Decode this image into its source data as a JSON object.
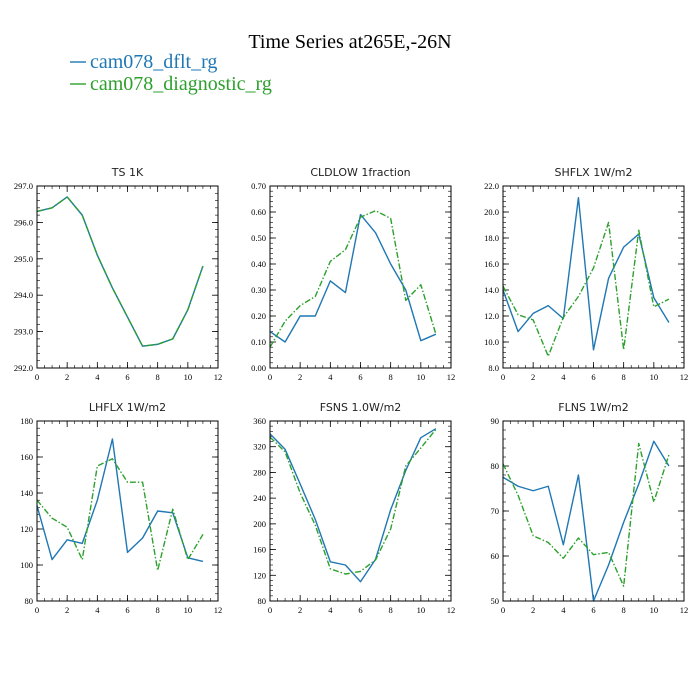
{
  "title": "Time Series at265E,-26N",
  "legend": [
    {
      "name": "cam078_dflt_rg",
      "color": "#1f77b4",
      "dash": "solid"
    },
    {
      "name": "cam078_diagnostic_rg",
      "color": "#2ca02c",
      "dash": "dashdot"
    }
  ],
  "chart_data": [
    {
      "type": "line",
      "title": "TS   1K",
      "x": [
        0,
        1,
        2,
        3,
        4,
        5,
        6,
        7,
        8,
        9,
        10,
        11
      ],
      "xlim": [
        0,
        12
      ],
      "xticks": [
        0,
        2,
        4,
        6,
        8,
        10,
        12
      ],
      "xtick_labels": [
        "0",
        "2",
        "4",
        "6",
        "8",
        "10",
        "12"
      ],
      "ylim": [
        292.0,
        297.0
      ],
      "yticks": [
        292,
        293,
        294,
        295,
        296,
        297
      ],
      "ytick_labels": [
        "292.0",
        "293.0",
        "294.0",
        "295.0",
        "296.0",
        "297.0"
      ],
      "series": [
        {
          "name": "cam078_dflt_rg",
          "values": [
            296.3,
            296.4,
            296.7,
            296.2,
            295.1,
            294.2,
            293.4,
            292.6,
            292.65,
            292.8,
            293.6,
            294.8
          ]
        },
        {
          "name": "cam078_diagnostic_rg",
          "values": [
            296.3,
            296.4,
            296.7,
            296.2,
            295.1,
            294.2,
            293.4,
            292.6,
            292.65,
            292.8,
            293.6,
            294.8
          ]
        }
      ]
    },
    {
      "type": "line",
      "title": "CLDLOW   1fraction",
      "x": [
        0,
        1,
        2,
        3,
        4,
        5,
        6,
        7,
        8,
        9,
        10,
        11
      ],
      "xlim": [
        0,
        12
      ],
      "xticks": [
        0,
        2,
        4,
        6,
        8,
        10,
        12
      ],
      "xtick_labels": [
        "0",
        "2",
        "4",
        "6",
        "8",
        "10",
        "12"
      ],
      "ylim": [
        0.0,
        0.7
      ],
      "yticks": [
        0,
        0.1,
        0.2,
        0.3,
        0.4,
        0.5,
        0.6,
        0.7
      ],
      "ytick_labels": [
        "0.00",
        "0.10",
        "0.20",
        "0.30",
        "0.40",
        "0.50",
        "0.60",
        "0.70"
      ],
      "series": [
        {
          "name": "cam078_dflt_rg",
          "values": [
            0.14,
            0.1,
            0.2,
            0.2,
            0.335,
            0.29,
            0.59,
            0.52,
            0.4,
            0.3,
            0.105,
            0.13
          ]
        },
        {
          "name": "cam078_diagnostic_rg",
          "values": [
            0.08,
            0.18,
            0.24,
            0.275,
            0.41,
            0.455,
            0.58,
            0.605,
            0.575,
            0.26,
            0.32,
            0.13
          ]
        }
      ]
    },
    {
      "type": "line",
      "title": "SHFLX   1W/m2",
      "x": [
        0,
        1,
        2,
        3,
        4,
        5,
        6,
        7,
        8,
        9,
        10,
        11
      ],
      "xlim": [
        0,
        12
      ],
      "xticks": [
        0,
        2,
        4,
        6,
        8,
        10,
        12
      ],
      "xtick_labels": [
        "0",
        "2",
        "4",
        "6",
        "8",
        "10",
        "12"
      ],
      "ylim": [
        8.0,
        22.0
      ],
      "yticks": [
        8,
        10,
        12,
        14,
        16,
        18,
        20,
        22
      ],
      "ytick_labels": [
        "8.0",
        "10.0",
        "12.0",
        "14.0",
        "16.0",
        "18.0",
        "20.0",
        "22.0"
      ],
      "series": [
        {
          "name": "cam078_dflt_rg",
          "values": [
            14.0,
            10.8,
            12.2,
            12.8,
            11.8,
            21.1,
            9.4,
            14.9,
            17.3,
            18.3,
            13.4,
            11.5
          ]
        },
        {
          "name": "cam078_diagnostic_rg",
          "values": [
            14.3,
            12.1,
            11.7,
            8.9,
            11.9,
            13.5,
            15.7,
            19.2,
            9.4,
            18.6,
            12.7,
            13.3
          ]
        }
      ]
    },
    {
      "type": "line",
      "title": "LHFLX   1W/m2",
      "x": [
        0,
        1,
        2,
        3,
        4,
        5,
        6,
        7,
        8,
        9,
        10,
        11
      ],
      "xlim": [
        0,
        12
      ],
      "xticks": [
        0,
        2,
        4,
        6,
        8,
        10,
        12
      ],
      "xtick_labels": [
        "0",
        "2",
        "4",
        "6",
        "8",
        "10",
        "12"
      ],
      "ylim": [
        80,
        180
      ],
      "yticks": [
        80,
        100,
        120,
        140,
        160,
        180
      ],
      "ytick_labels": [
        "80",
        "100",
        "120",
        "140",
        "160",
        "180"
      ],
      "series": [
        {
          "name": "cam078_dflt_rg",
          "values": [
            133,
            103,
            114,
            112,
            136,
            170,
            107,
            115,
            130,
            129,
            104,
            102
          ]
        },
        {
          "name": "cam078_diagnostic_rg",
          "values": [
            136,
            126,
            121,
            103,
            155,
            159,
            146,
            146,
            97,
            131,
            103,
            117
          ]
        }
      ]
    },
    {
      "type": "line",
      "title": "FSNS   1.0W/m2",
      "x": [
        0,
        1,
        2,
        3,
        4,
        5,
        6,
        7,
        8,
        9,
        10,
        11
      ],
      "xlim": [
        0,
        12
      ],
      "xticks": [
        0,
        2,
        4,
        6,
        8,
        10,
        12
      ],
      "xtick_labels": [
        "0",
        "2",
        "4",
        "6",
        "8",
        "10",
        "12"
      ],
      "ylim": [
        80,
        360
      ],
      "yticks": [
        80,
        120,
        160,
        200,
        240,
        280,
        320,
        360
      ],
      "ytick_labels": [
        "80",
        "120",
        "160",
        "200",
        "240",
        "280",
        "320",
        "360"
      ],
      "series": [
        {
          "name": "cam078_dflt_rg",
          "values": [
            340,
            316,
            262,
            207,
            141,
            136,
            110,
            145,
            222,
            283,
            334,
            348
          ]
        },
        {
          "name": "cam078_diagnostic_rg",
          "values": [
            335,
            312,
            248,
            198,
            130,
            122,
            126,
            144,
            192,
            290,
            318,
            347
          ]
        }
      ]
    },
    {
      "type": "line",
      "title": "FLNS   1W/m2",
      "x": [
        0,
        1,
        2,
        3,
        4,
        5,
        6,
        7,
        8,
        9,
        10,
        11
      ],
      "xlim": [
        0,
        12
      ],
      "xticks": [
        0,
        2,
        4,
        6,
        8,
        10,
        12
      ],
      "xtick_labels": [
        "0",
        "2",
        "4",
        "6",
        "8",
        "10",
        "12"
      ],
      "ylim": [
        50,
        90
      ],
      "yticks": [
        50,
        60,
        70,
        80,
        90
      ],
      "ytick_labels": [
        "50",
        "60",
        "70",
        "80",
        "90"
      ],
      "series": [
        {
          "name": "cam078_dflt_rg",
          "values": [
            77.5,
            75.5,
            74.5,
            75.5,
            62.5,
            78,
            50,
            58,
            67.5,
            76,
            85.5,
            80
          ]
        },
        {
          "name": "cam078_diagnostic_rg",
          "values": [
            80.5,
            73.5,
            64.5,
            63,
            59.5,
            64,
            60.3,
            60.8,
            53.3,
            85,
            72,
            82.5
          ]
        }
      ]
    }
  ]
}
